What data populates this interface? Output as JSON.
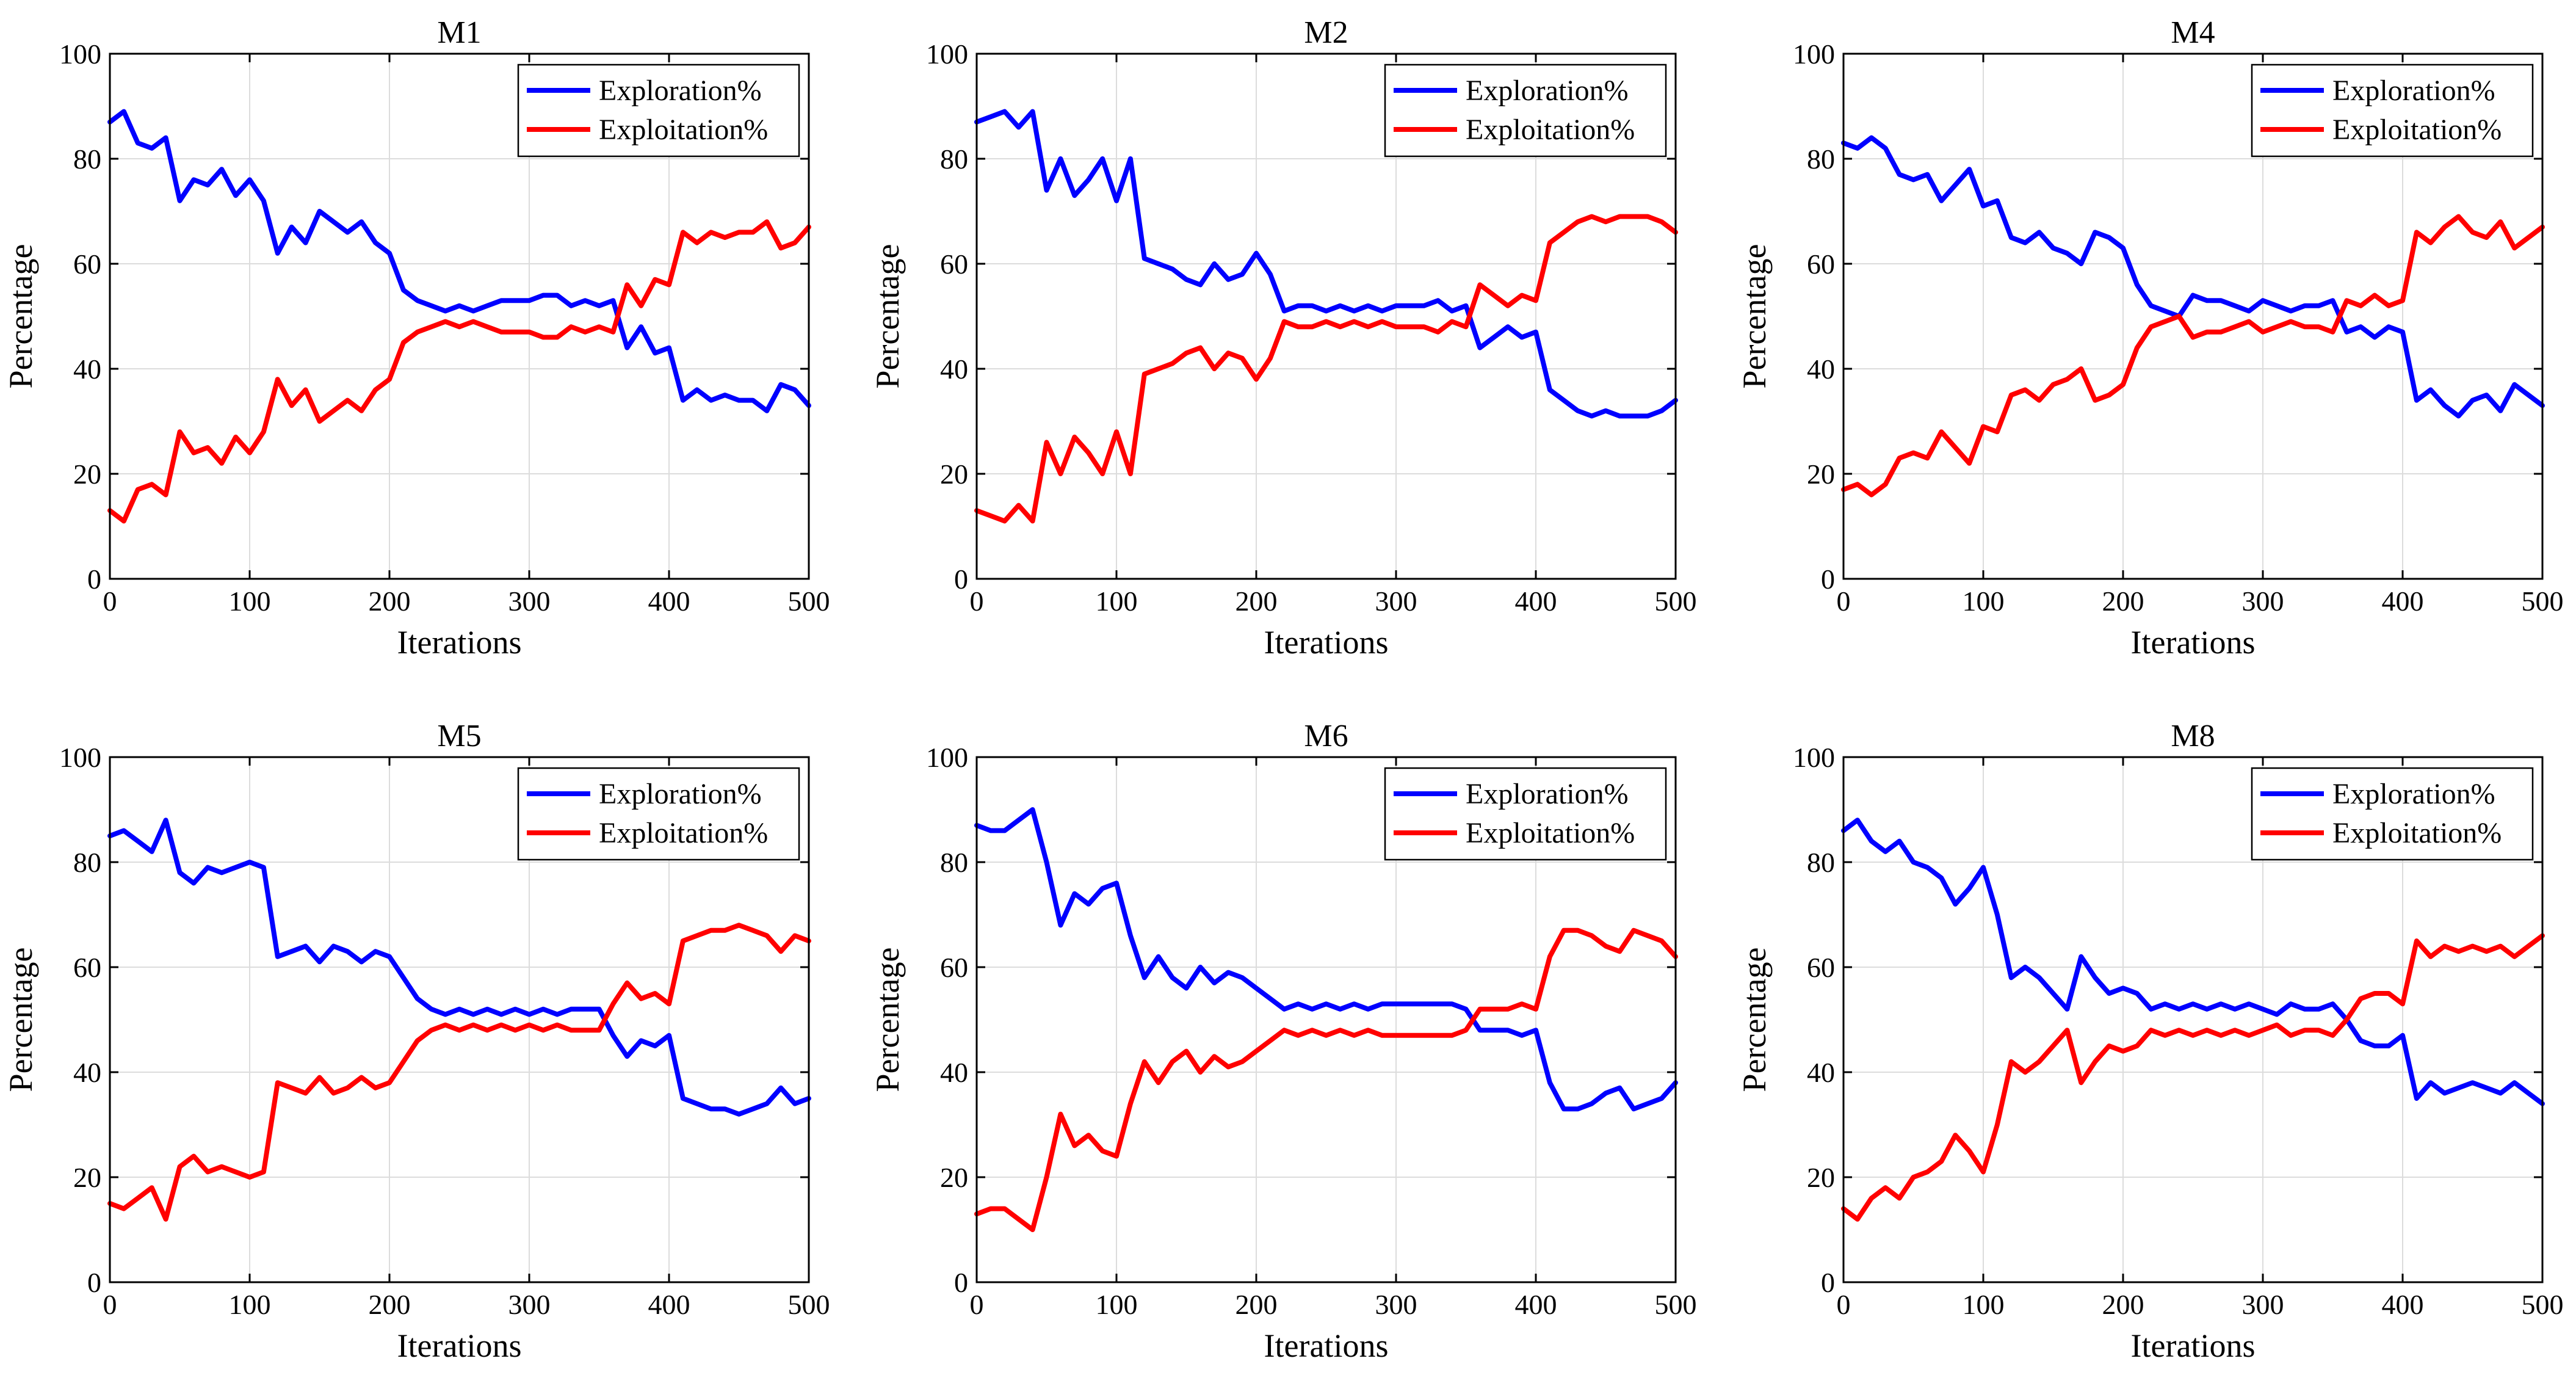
{
  "chart_data": [
    {
      "type": "line",
      "title": "M1",
      "xlabel": "Iterations",
      "ylabel": "Percentage",
      "xlim": [
        0,
        500
      ],
      "ylim": [
        0,
        100
      ],
      "xticks": [
        "0",
        "100",
        "200",
        "300",
        "400",
        "500"
      ],
      "yticks": [
        "0",
        "20",
        "40",
        "60",
        "80",
        "100"
      ],
      "grid": true,
      "legend_position": "top-right",
      "x": [
        0,
        10,
        20,
        30,
        40,
        50,
        60,
        70,
        80,
        90,
        100,
        110,
        120,
        130,
        140,
        150,
        160,
        170,
        180,
        190,
        200,
        210,
        220,
        230,
        240,
        250,
        260,
        270,
        280,
        290,
        300,
        310,
        320,
        330,
        340,
        350,
        360,
        370,
        380,
        390,
        400,
        410,
        420,
        430,
        440,
        450,
        460,
        470,
        480,
        490,
        500
      ],
      "series": [
        {
          "name": "Exploration%",
          "color": "#0000ff",
          "values": [
            87,
            89,
            83,
            82,
            84,
            72,
            76,
            75,
            78,
            73,
            76,
            72,
            62,
            67,
            64,
            70,
            68,
            66,
            68,
            64,
            62,
            55,
            53,
            52,
            51,
            52,
            51,
            52,
            53,
            53,
            53,
            54,
            54,
            52,
            53,
            52,
            53,
            44,
            48,
            43,
            44,
            34,
            36,
            34,
            35,
            34,
            34,
            32,
            37,
            36,
            33
          ]
        },
        {
          "name": "Exploitation%",
          "color": "#ff0000",
          "values": [
            13,
            11,
            17,
            18,
            16,
            28,
            24,
            25,
            22,
            27,
            24,
            28,
            38,
            33,
            36,
            30,
            32,
            34,
            32,
            36,
            38,
            45,
            47,
            48,
            49,
            48,
            49,
            48,
            47,
            47,
            47,
            46,
            46,
            48,
            47,
            48,
            47,
            56,
            52,
            57,
            56,
            66,
            64,
            66,
            65,
            66,
            66,
            68,
            63,
            64,
            67
          ]
        }
      ]
    },
    {
      "type": "line",
      "title": "M2",
      "xlabel": "Iterations",
      "ylabel": "Percentage",
      "xlim": [
        0,
        500
      ],
      "ylim": [
        0,
        100
      ],
      "xticks": [
        "0",
        "100",
        "200",
        "300",
        "400",
        "500"
      ],
      "yticks": [
        "0",
        "20",
        "40",
        "60",
        "80",
        "100"
      ],
      "grid": true,
      "legend_position": "top-right",
      "x": [
        0,
        10,
        20,
        30,
        40,
        50,
        60,
        70,
        80,
        90,
        100,
        110,
        120,
        130,
        140,
        150,
        160,
        170,
        180,
        190,
        200,
        210,
        220,
        230,
        240,
        250,
        260,
        270,
        280,
        290,
        300,
        310,
        320,
        330,
        340,
        350,
        360,
        370,
        380,
        390,
        400,
        410,
        420,
        430,
        440,
        450,
        460,
        470,
        480,
        490,
        500
      ],
      "series": [
        {
          "name": "Exploration%",
          "color": "#0000ff",
          "values": [
            87,
            88,
            89,
            86,
            89,
            74,
            80,
            73,
            76,
            80,
            72,
            80,
            61,
            60,
            59,
            57,
            56,
            60,
            57,
            58,
            62,
            58,
            51,
            52,
            52,
            51,
            52,
            51,
            52,
            51,
            52,
            52,
            52,
            53,
            51,
            52,
            44,
            46,
            48,
            46,
            47,
            36,
            34,
            32,
            31,
            32,
            31,
            31,
            31,
            32,
            34
          ]
        },
        {
          "name": "Exploitation%",
          "color": "#ff0000",
          "values": [
            13,
            12,
            11,
            14,
            11,
            26,
            20,
            27,
            24,
            20,
            28,
            20,
            39,
            40,
            41,
            43,
            44,
            40,
            43,
            42,
            38,
            42,
            49,
            48,
            48,
            49,
            48,
            49,
            48,
            49,
            48,
            48,
            48,
            47,
            49,
            48,
            56,
            54,
            52,
            54,
            53,
            64,
            66,
            68,
            69,
            68,
            69,
            69,
            69,
            68,
            66
          ]
        }
      ]
    },
    {
      "type": "line",
      "title": "M4",
      "xlabel": "Iterations",
      "ylabel": "Percentage",
      "xlim": [
        0,
        500
      ],
      "ylim": [
        0,
        100
      ],
      "xticks": [
        "0",
        "100",
        "200",
        "300",
        "400",
        "500"
      ],
      "yticks": [
        "0",
        "20",
        "40",
        "60",
        "80",
        "100"
      ],
      "grid": true,
      "legend_position": "top-right",
      "x": [
        0,
        10,
        20,
        30,
        40,
        50,
        60,
        70,
        80,
        90,
        100,
        110,
        120,
        130,
        140,
        150,
        160,
        170,
        180,
        190,
        200,
        210,
        220,
        230,
        240,
        250,
        260,
        270,
        280,
        290,
        300,
        310,
        320,
        330,
        340,
        350,
        360,
        370,
        380,
        390,
        400,
        410,
        420,
        430,
        440,
        450,
        460,
        470,
        480,
        490,
        500
      ],
      "series": [
        {
          "name": "Exploration%",
          "color": "#0000ff",
          "values": [
            83,
            82,
            84,
            82,
            77,
            76,
            77,
            72,
            75,
            78,
            71,
            72,
            65,
            64,
            66,
            63,
            62,
            60,
            66,
            65,
            63,
            56,
            52,
            51,
            50,
            54,
            53,
            53,
            52,
            51,
            53,
            52,
            51,
            52,
            52,
            53,
            47,
            48,
            46,
            48,
            47,
            34,
            36,
            33,
            31,
            34,
            35,
            32,
            37,
            35,
            33
          ]
        },
        {
          "name": "Exploitation%",
          "color": "#ff0000",
          "values": [
            17,
            18,
            16,
            18,
            23,
            24,
            23,
            28,
            25,
            22,
            29,
            28,
            35,
            36,
            34,
            37,
            38,
            40,
            34,
            35,
            37,
            44,
            48,
            49,
            50,
            46,
            47,
            47,
            48,
            49,
            47,
            48,
            49,
            48,
            48,
            47,
            53,
            52,
            54,
            52,
            53,
            66,
            64,
            67,
            69,
            66,
            65,
            68,
            63,
            65,
            67
          ]
        }
      ]
    },
    {
      "type": "line",
      "title": "M5",
      "xlabel": "Iterations",
      "ylabel": "Percentage",
      "xlim": [
        0,
        500
      ],
      "ylim": [
        0,
        100
      ],
      "xticks": [
        "0",
        "100",
        "200",
        "300",
        "400",
        "500"
      ],
      "yticks": [
        "0",
        "20",
        "40",
        "60",
        "80",
        "100"
      ],
      "grid": true,
      "legend_position": "top-right",
      "x": [
        0,
        10,
        20,
        30,
        40,
        50,
        60,
        70,
        80,
        90,
        100,
        110,
        120,
        130,
        140,
        150,
        160,
        170,
        180,
        190,
        200,
        210,
        220,
        230,
        240,
        250,
        260,
        270,
        280,
        290,
        300,
        310,
        320,
        330,
        340,
        350,
        360,
        370,
        380,
        390,
        400,
        410,
        420,
        430,
        440,
        450,
        460,
        470,
        480,
        490,
        500
      ],
      "series": [
        {
          "name": "Exploration%",
          "color": "#0000ff",
          "values": [
            85,
            86,
            84,
            82,
            88,
            78,
            76,
            79,
            78,
            79,
            80,
            79,
            62,
            63,
            64,
            61,
            64,
            63,
            61,
            63,
            62,
            58,
            54,
            52,
            51,
            52,
            51,
            52,
            51,
            52,
            51,
            52,
            51,
            52,
            52,
            52,
            47,
            43,
            46,
            45,
            47,
            35,
            34,
            33,
            33,
            32,
            33,
            34,
            37,
            34,
            35
          ]
        },
        {
          "name": "Exploitation%",
          "color": "#ff0000",
          "values": [
            15,
            14,
            16,
            18,
            12,
            22,
            24,
            21,
            22,
            21,
            20,
            21,
            38,
            37,
            36,
            39,
            36,
            37,
            39,
            37,
            38,
            42,
            46,
            48,
            49,
            48,
            49,
            48,
            49,
            48,
            49,
            48,
            49,
            48,
            48,
            48,
            53,
            57,
            54,
            55,
            53,
            65,
            66,
            67,
            67,
            68,
            67,
            66,
            63,
            66,
            65
          ]
        }
      ]
    },
    {
      "type": "line",
      "title": "M6",
      "xlabel": "Iterations",
      "ylabel": "Percentage",
      "xlim": [
        0,
        500
      ],
      "ylim": [
        0,
        100
      ],
      "xticks": [
        "0",
        "100",
        "200",
        "300",
        "400",
        "500"
      ],
      "yticks": [
        "0",
        "20",
        "40",
        "60",
        "80",
        "100"
      ],
      "grid": true,
      "legend_position": "top-right",
      "x": [
        0,
        10,
        20,
        30,
        40,
        50,
        60,
        70,
        80,
        90,
        100,
        110,
        120,
        130,
        140,
        150,
        160,
        170,
        180,
        190,
        200,
        210,
        220,
        230,
        240,
        250,
        260,
        270,
        280,
        290,
        300,
        310,
        320,
        330,
        340,
        350,
        360,
        370,
        380,
        390,
        400,
        410,
        420,
        430,
        440,
        450,
        460,
        470,
        480,
        490,
        500
      ],
      "series": [
        {
          "name": "Exploration%",
          "color": "#0000ff",
          "values": [
            87,
            86,
            86,
            88,
            90,
            80,
            68,
            74,
            72,
            75,
            76,
            66,
            58,
            62,
            58,
            56,
            60,
            57,
            59,
            58,
            56,
            54,
            52,
            53,
            52,
            53,
            52,
            53,
            52,
            53,
            53,
            53,
            53,
            53,
            53,
            52,
            48,
            48,
            48,
            47,
            48,
            38,
            33,
            33,
            34,
            36,
            37,
            33,
            34,
            35,
            38
          ]
        },
        {
          "name": "Exploitation%",
          "color": "#ff0000",
          "values": [
            13,
            14,
            14,
            12,
            10,
            20,
            32,
            26,
            28,
            25,
            24,
            34,
            42,
            38,
            42,
            44,
            40,
            43,
            41,
            42,
            44,
            46,
            48,
            47,
            48,
            47,
            48,
            47,
            48,
            47,
            47,
            47,
            47,
            47,
            47,
            48,
            52,
            52,
            52,
            53,
            52,
            62,
            67,
            67,
            66,
            64,
            63,
            67,
            66,
            65,
            62
          ]
        }
      ]
    },
    {
      "type": "line",
      "title": "M8",
      "xlabel": "Iterations",
      "ylabel": "Percentage",
      "xlim": [
        0,
        500
      ],
      "ylim": [
        0,
        100
      ],
      "xticks": [
        "0",
        "100",
        "200",
        "300",
        "400",
        "500"
      ],
      "yticks": [
        "0",
        "20",
        "40",
        "60",
        "80",
        "100"
      ],
      "grid": true,
      "legend_position": "top-right",
      "x": [
        0,
        10,
        20,
        30,
        40,
        50,
        60,
        70,
        80,
        90,
        100,
        110,
        120,
        130,
        140,
        150,
        160,
        170,
        180,
        190,
        200,
        210,
        220,
        230,
        240,
        250,
        260,
        270,
        280,
        290,
        300,
        310,
        320,
        330,
        340,
        350,
        360,
        370,
        380,
        390,
        400,
        410,
        420,
        430,
        440,
        450,
        460,
        470,
        480,
        490,
        500
      ],
      "series": [
        {
          "name": "Exploration%",
          "color": "#0000ff",
          "values": [
            86,
            88,
            84,
            82,
            84,
            80,
            79,
            77,
            72,
            75,
            79,
            70,
            58,
            60,
            58,
            55,
            52,
            62,
            58,
            55,
            56,
            55,
            52,
            53,
            52,
            53,
            52,
            53,
            52,
            53,
            52,
            51,
            53,
            52,
            52,
            53,
            50,
            46,
            45,
            45,
            47,
            35,
            38,
            36,
            37,
            38,
            37,
            36,
            38,
            36,
            34
          ]
        },
        {
          "name": "Exploitation%",
          "color": "#ff0000",
          "values": [
            14,
            12,
            16,
            18,
            16,
            20,
            21,
            23,
            28,
            25,
            21,
            30,
            42,
            40,
            42,
            45,
            48,
            38,
            42,
            45,
            44,
            45,
            48,
            47,
            48,
            47,
            48,
            47,
            48,
            47,
            48,
            49,
            47,
            48,
            48,
            47,
            50,
            54,
            55,
            55,
            53,
            65,
            62,
            64,
            63,
            64,
            63,
            64,
            62,
            64,
            66
          ]
        }
      ]
    }
  ]
}
